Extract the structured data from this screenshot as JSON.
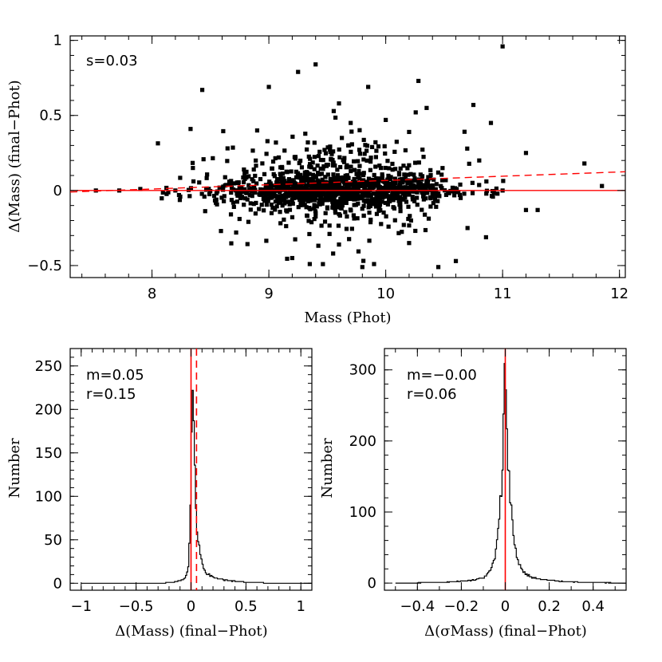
{
  "chart_data": [
    {
      "type": "scatter",
      "xlabel": "Mass (Phot)",
      "ylabel": "Δ(Mass) (final−Phot)",
      "xlim": [
        7.3,
        12.05
      ],
      "ylim": [
        -0.58,
        1.03
      ],
      "xticks": [
        "8",
        "9",
        "10",
        "11",
        "12"
      ],
      "yticks": [
        "−0.5",
        "0",
        "0.5",
        "1"
      ],
      "annotations": [
        "s=0.03"
      ],
      "zero_line": 0,
      "fit_line": {
        "x": [
          7.3,
          12.05
        ],
        "y": [
          -0.01,
          0.125
        ]
      },
      "points_note": "≈1500 points; central cloud reproduced statistically",
      "outliers": [
        {
          "x": 11.0,
          "y": 0.96
        },
        {
          "x": 9.4,
          "y": 0.84
        },
        {
          "x": 9.25,
          "y": 0.79
        },
        {
          "x": 10.28,
          "y": 0.73
        },
        {
          "x": 9.0,
          "y": 0.69
        },
        {
          "x": 8.43,
          "y": 0.67
        },
        {
          "x": 9.85,
          "y": 0.69
        },
        {
          "x": 9.6,
          "y": 0.58
        },
        {
          "x": 10.75,
          "y": 0.57
        },
        {
          "x": 8.33,
          "y": 0.41
        },
        {
          "x": 10.9,
          "y": 0.45
        },
        {
          "x": 11.2,
          "y": 0.25
        },
        {
          "x": 11.7,
          "y": 0.18
        },
        {
          "x": 11.85,
          "y": 0.03
        },
        {
          "x": 11.0,
          "y": 0.0
        },
        {
          "x": 11.2,
          "y": -0.13
        },
        {
          "x": 11.3,
          "y": -0.13
        },
        {
          "x": 10.45,
          "y": -0.51
        },
        {
          "x": 10.6,
          "y": -0.47
        },
        {
          "x": 9.35,
          "y": -0.49
        },
        {
          "x": 9.2,
          "y": -0.45
        },
        {
          "x": 9.8,
          "y": -0.51
        },
        {
          "x": 9.9,
          "y": -0.49
        },
        {
          "x": 8.72,
          "y": -0.28
        },
        {
          "x": 8.35,
          "y": 0.15
        },
        {
          "x": 7.52,
          "y": 0.0
        },
        {
          "x": 7.72,
          "y": 0.0
        },
        {
          "x": 7.9,
          "y": 0.01
        },
        {
          "x": 8.2,
          "y": 0.0
        },
        {
          "x": 10.2,
          "y": -0.35
        },
        {
          "x": 10.35,
          "y": 0.55
        },
        {
          "x": 10.0,
          "y": 0.47
        },
        {
          "x": 9.7,
          "y": 0.45
        },
        {
          "x": 8.9,
          "y": 0.4
        },
        {
          "x": 10.2,
          "y": 0.39
        },
        {
          "x": 9.55,
          "y": -0.42
        },
        {
          "x": 9.6,
          "y": -0.36
        },
        {
          "x": 10.8,
          "y": 0.2
        },
        {
          "x": 10.7,
          "y": -0.25
        }
      ]
    },
    {
      "type": "histogram",
      "xlabel": "Δ(Mass) (final−Phot)",
      "ylabel": "Number",
      "xlim": [
        -1.1,
        1.1
      ],
      "ylim": [
        -8,
        270
      ],
      "xticks": [
        "−1",
        "−0.5",
        "0",
        "0.5",
        "1"
      ],
      "yticks": [
        "0",
        "50",
        "100",
        "150",
        "200",
        "250"
      ],
      "annotations": [
        "m=0.05",
        "r=0.15"
      ],
      "mean_line": 0.05,
      "zero_line": 0,
      "bin_width": 0.01,
      "bin_start": -1.0,
      "counts_note": "distribution peaked at ~0.01 with peak ~245, long positive tail"
    },
    {
      "type": "histogram",
      "xlabel": "Δ(σMass) (final−Phot)",
      "ylabel": "Number",
      "xlim": [
        -0.55,
        0.55
      ],
      "ylim": [
        -10,
        330
      ],
      "xticks": [
        "−0.4",
        "−0.2",
        "0",
        "0.2",
        "0.4"
      ],
      "yticks": [
        "0",
        "100",
        "200",
        "300"
      ],
      "annotations": [
        "m=−0.00",
        "r=0.06"
      ],
      "zero_line": 0,
      "bin_width": 0.005,
      "bin_start": -0.5,
      "counts_note": "sharp peak ~310 at 0"
    }
  ]
}
